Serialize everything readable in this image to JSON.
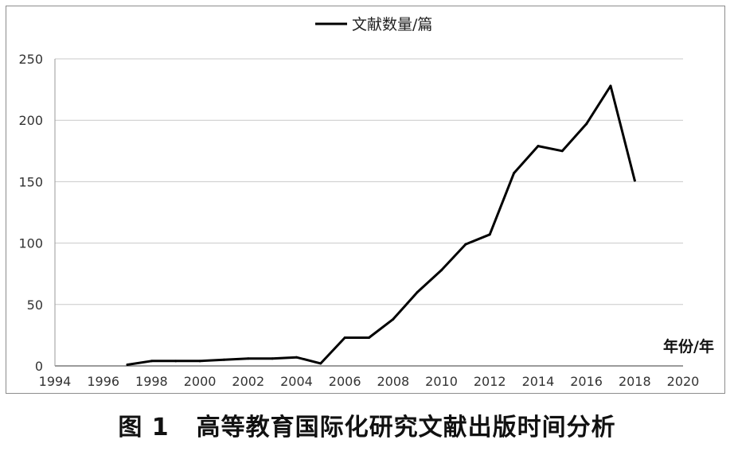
{
  "chart_data": {
    "type": "line",
    "legend": {
      "label": "文献数量/篇",
      "position": "top-center"
    },
    "xlabel": "年份/年",
    "ylabel": "",
    "xlim": [
      1994,
      2020
    ],
    "ylim": [
      0,
      250
    ],
    "x_ticks": [
      "1994",
      "1996",
      "1998",
      "2000",
      "2002",
      "2004",
      "2006",
      "2008",
      "2010",
      "2012",
      "2014",
      "2016",
      "2018",
      "2020"
    ],
    "y_ticks": [
      "0",
      "50",
      "100",
      "150",
      "200",
      "250"
    ],
    "grid": "horizontal",
    "series": [
      {
        "name": "文献数量/篇",
        "color": "#000000",
        "x": [
          1997,
          1998,
          1999,
          2000,
          2001,
          2002,
          2003,
          2004,
          2005,
          2006,
          2007,
          2008,
          2009,
          2010,
          2011,
          2012,
          2013,
          2014,
          2015,
          2016,
          2017,
          2018
        ],
        "y": [
          1,
          4,
          4,
          4,
          5,
          6,
          6,
          7,
          2,
          23,
          23,
          38,
          60,
          78,
          99,
          107,
          157,
          179,
          175,
          197,
          228,
          151
        ]
      }
    ]
  },
  "caption": {
    "figure_no": "图 1",
    "title": "高等教育国际化研究文献出版时间分析"
  }
}
